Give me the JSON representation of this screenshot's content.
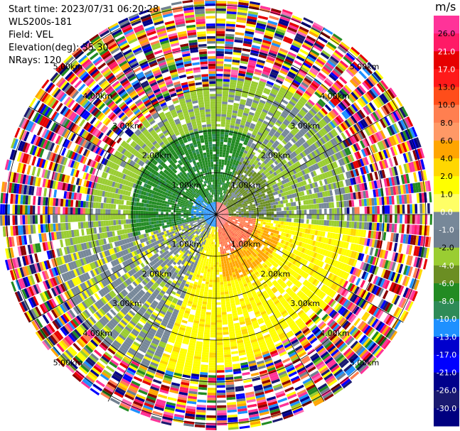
{
  "header": {
    "start_time": "Start time: 2023/07/31 06:20:28",
    "instrument": "WLS200s-181",
    "field": "Field: VEL",
    "elevation": "Elevation(deg): 35.30",
    "nrays": "NRays: 120"
  },
  "colorbar": {
    "unit": "m/s",
    "ticks": [
      "26.0",
      "21.0",
      "17.0",
      "13.0",
      "10.0",
      "8.0",
      "6.0",
      "4.0",
      "2.0",
      "1.0",
      "0.0",
      "-1.0",
      "-2.0",
      "-4.0",
      "-6.0",
      "-8.0",
      "-10.0",
      "-13.0",
      "-17.0",
      "-21.0",
      "-26.0",
      "-30.0"
    ],
    "colors": [
      "#ff3399",
      "#ff1a66",
      "#e60000",
      "#ff1a1a",
      "#ff4d1a",
      "#ff7f50",
      "#ff9966",
      "#ffa500",
      "#ffd700",
      "#ffff00",
      "#ffff66",
      "#778899",
      "#708090",
      "#9acd32",
      "#6b8e23",
      "#228b22",
      "#2e8b57",
      "#1e90ff",
      "#0000cd",
      "#0000ff",
      "#00008b",
      "#191970",
      "#000080"
    ]
  },
  "chart_data": {
    "type": "heatmap",
    "projection": "polar PPI",
    "range_rings_km": [
      1.0,
      2.0,
      3.0,
      4.0,
      5.0
    ],
    "ring_labels": [
      "1.00km",
      "2.00km",
      "3.00km",
      "4.00km",
      "5.00km"
    ],
    "rays": 120,
    "value_unit": "m/s",
    "value_range": [
      -30.0,
      30.0
    ],
    "inner_pattern": {
      "west_northwest": "green (-2 to -6 m/s)",
      "northeast": "olive/gray (-1 to -4 m/s)",
      "southeast": "yellow/orange (2 to 8 m/s)",
      "center_east": "red/salmon (8 to 13 m/s)",
      "center_west": "blue (-8 to -13 m/s)"
    },
    "outer_pattern": "noise (multicolored)"
  }
}
